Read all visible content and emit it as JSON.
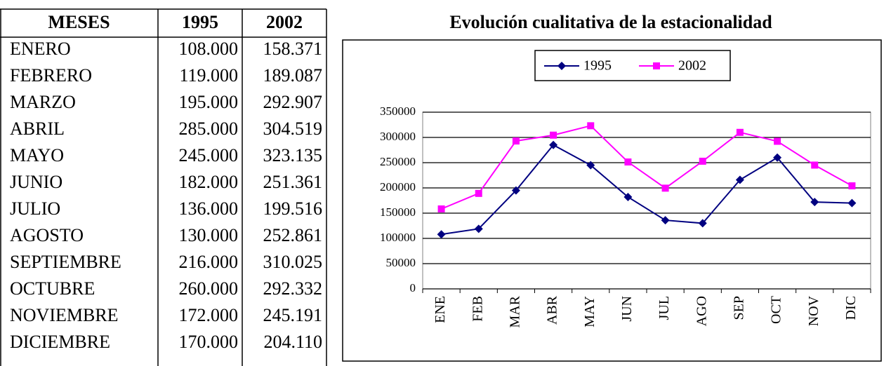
{
  "table": {
    "header": [
      "MESES",
      "1995",
      "2002"
    ],
    "rows": [
      [
        "ENERO",
        "108.000",
        "158.371"
      ],
      [
        "FEBRERO",
        "119.000",
        "189.087"
      ],
      [
        "MARZO",
        "195.000",
        "292.907"
      ],
      [
        "ABRIL",
        "285.000",
        "304.519"
      ],
      [
        "MAYO",
        "245.000",
        "323.135"
      ],
      [
        "JUNIO",
        "182.000",
        "251.361"
      ],
      [
        "JULIO",
        "136.000",
        "199.516"
      ],
      [
        "AGOSTO",
        "130.000",
        "252.861"
      ],
      [
        "SEPTIEMBRE",
        "216.000",
        "310.025"
      ],
      [
        "OCTUBRE",
        "260.000",
        "292.332"
      ],
      [
        "NOVIEMBRE",
        "172.000",
        "245.191"
      ],
      [
        "DICIEMBRE",
        "170.000",
        "204.110"
      ]
    ]
  },
  "chart_data": {
    "type": "line",
    "title": "Evolución cualitativa de la estacionalidad",
    "categories": [
      "ENE",
      "FEB",
      "MAR",
      "ABR",
      "MAY",
      "JUN",
      "JUL",
      "AGO",
      "SEP",
      "OCT",
      "NOV",
      "DIC"
    ],
    "series": [
      {
        "name": "1995",
        "color": "#000080",
        "values": [
          108000,
          119000,
          195000,
          285000,
          245000,
          182000,
          136000,
          130000,
          216000,
          260000,
          172000,
          170000
        ]
      },
      {
        "name": "2002",
        "color": "#ff00ff",
        "values": [
          158371,
          189087,
          292907,
          304519,
          323135,
          251361,
          199516,
          252861,
          310025,
          292332,
          245191,
          204110
        ]
      }
    ],
    "ylim": [
      0,
      350000
    ],
    "yticks": [
      0,
      50000,
      100000,
      150000,
      200000,
      250000,
      300000,
      350000
    ],
    "grid": true,
    "legend": "top"
  }
}
